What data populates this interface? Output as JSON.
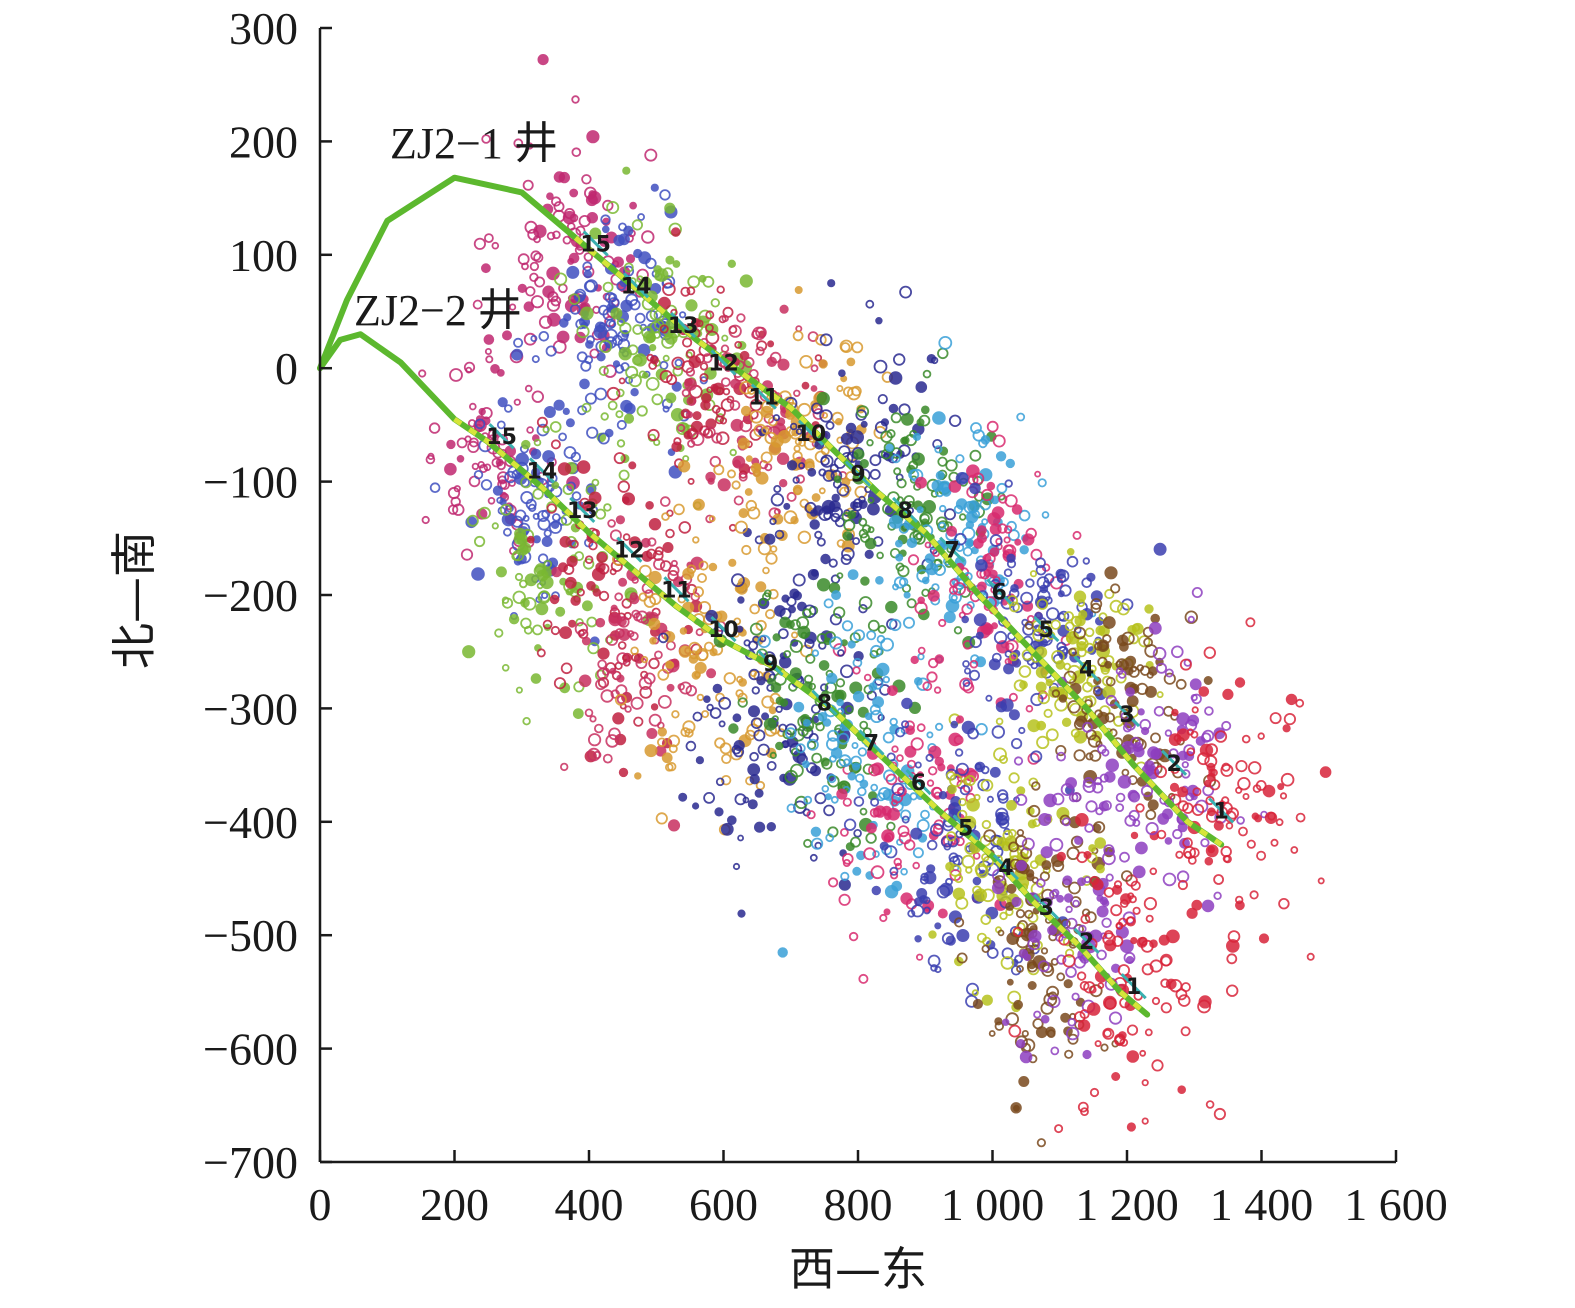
{
  "chart_data": {
    "type": "scatter",
    "title": "",
    "xlabel": "西—东",
    "ylabel": "北—南",
    "xlim": [
      0,
      1600
    ],
    "ylim": [
      -700,
      300
    ],
    "xticks": [
      0,
      200,
      400,
      600,
      800,
      1000,
      1200,
      1400,
      1600
    ],
    "xtick_labels": [
      "0",
      "200",
      "400",
      "600",
      "800",
      "1 000",
      "1 200",
      "1 400",
      "1 600"
    ],
    "yticks": [
      300,
      200,
      100,
      0,
      -100,
      -200,
      -300,
      -400,
      -500,
      -600,
      -700
    ],
    "ytick_labels": [
      "300",
      "200",
      "100",
      "0",
      "−100",
      "−200",
      "−300",
      "−400",
      "−500",
      "−600",
      "−700"
    ],
    "grid": false,
    "stage_colors": {
      "1": "#d8243a",
      "2": "#8e3fc0",
      "3": "#7a4a1e",
      "4": "#b7c21e",
      "5": "#3b3fb0",
      "6": "#d82a6e",
      "7": "#3aa0d8",
      "8": "#3a8a2a",
      "9": "#2a2a90",
      "10": "#d89a30",
      "11": "#c83060",
      "12": "#c02040",
      "13": "#7ab832",
      "14": "#4050c0",
      "15": "#c02870"
    },
    "wells": [
      {
        "name": "ZJ2−1 井",
        "color": "#5cb82e",
        "trajectory": [
          [
            0,
            0
          ],
          [
            40,
            60
          ],
          [
            100,
            130
          ],
          [
            200,
            168
          ],
          [
            300,
            155
          ],
          [
            380,
            115
          ],
          [
            470,
            70
          ],
          [
            560,
            25
          ],
          [
            640,
            -10
          ],
          [
            700,
            -35
          ],
          [
            760,
            -70
          ],
          [
            830,
            -110
          ],
          [
            900,
            -145
          ],
          [
            980,
            -200
          ],
          [
            1060,
            -250
          ],
          [
            1140,
            -300
          ],
          [
            1210,
            -350
          ],
          [
            1290,
            -400
          ],
          [
            1340,
            -420
          ]
        ],
        "stages": [
          {
            "label": "15",
            "x": 410,
            "y": 110
          },
          {
            "label": "14",
            "x": 470,
            "y": 73
          },
          {
            "label": "13",
            "x": 540,
            "y": 38
          },
          {
            "label": "12",
            "x": 600,
            "y": 5
          },
          {
            "label": "11",
            "x": 660,
            "y": -25
          },
          {
            "label": "10",
            "x": 730,
            "y": -57
          },
          {
            "label": "9",
            "x": 800,
            "y": -93
          },
          {
            "label": "8",
            "x": 870,
            "y": -125
          },
          {
            "label": "7",
            "x": 940,
            "y": -160
          },
          {
            "label": "6",
            "x": 1010,
            "y": -197
          },
          {
            "label": "5",
            "x": 1080,
            "y": -230
          },
          {
            "label": "4",
            "x": 1140,
            "y": -265
          },
          {
            "label": "3",
            "x": 1200,
            "y": -305
          },
          {
            "label": "2",
            "x": 1270,
            "y": -348
          },
          {
            "label": "1",
            "x": 1340,
            "y": -390
          }
        ]
      },
      {
        "name": "ZJ2−2 井",
        "color": "#5cb82e",
        "trajectory": [
          [
            0,
            0
          ],
          [
            30,
            25
          ],
          [
            60,
            30
          ],
          [
            120,
            5
          ],
          [
            200,
            -45
          ],
          [
            250,
            -65
          ],
          [
            330,
            -105
          ],
          [
            400,
            -145
          ],
          [
            460,
            -175
          ],
          [
            530,
            -210
          ],
          [
            600,
            -240
          ],
          [
            680,
            -265
          ],
          [
            760,
            -300
          ],
          [
            840,
            -345
          ],
          [
            920,
            -390
          ],
          [
            1000,
            -430
          ],
          [
            1060,
            -470
          ],
          [
            1130,
            -510
          ],
          [
            1190,
            -550
          ],
          [
            1230,
            -570
          ]
        ],
        "stages": [
          {
            "label": "15",
            "x": 270,
            "y": -60
          },
          {
            "label": "14",
            "x": 330,
            "y": -90
          },
          {
            "label": "13",
            "x": 390,
            "y": -125
          },
          {
            "label": "12",
            "x": 460,
            "y": -160
          },
          {
            "label": "11",
            "x": 530,
            "y": -195
          },
          {
            "label": "10",
            "x": 600,
            "y": -230
          },
          {
            "label": "9",
            "x": 670,
            "y": -260
          },
          {
            "label": "8",
            "x": 750,
            "y": -295
          },
          {
            "label": "7",
            "x": 820,
            "y": -330
          },
          {
            "label": "6",
            "x": 890,
            "y": -365
          },
          {
            "label": "5",
            "x": 960,
            "y": -405
          },
          {
            "label": "4",
            "x": 1020,
            "y": -440
          },
          {
            "label": "3",
            "x": 1080,
            "y": -475
          },
          {
            "label": "2",
            "x": 1140,
            "y": -505
          },
          {
            "label": "1",
            "x": 1210,
            "y": -545
          }
        ]
      }
    ],
    "event_clusters": [
      {
        "stage": "15",
        "cx": 380,
        "cy": 95,
        "sx": 55,
        "sy": 55,
        "n": 110
      },
      {
        "stage": "14",
        "cx": 450,
        "cy": 45,
        "sx": 55,
        "sy": 55,
        "n": 110
      },
      {
        "stage": "13",
        "cx": 520,
        "cy": 20,
        "sx": 60,
        "sy": 55,
        "n": 110
      },
      {
        "stage": "12",
        "cx": 590,
        "cy": -10,
        "sx": 50,
        "sy": 45,
        "n": 90
      },
      {
        "stage": "11",
        "cx": 650,
        "cy": -35,
        "sx": 55,
        "sy": 50,
        "n": 90
      },
      {
        "stage": "10",
        "cx": 720,
        "cy": -60,
        "sx": 55,
        "sy": 50,
        "n": 100
      },
      {
        "stage": "9",
        "cx": 790,
        "cy": -100,
        "sx": 60,
        "sy": 60,
        "n": 120
      },
      {
        "stage": "8",
        "cx": 870,
        "cy": -120,
        "sx": 55,
        "sy": 55,
        "n": 110
      },
      {
        "stage": "7",
        "cx": 950,
        "cy": -150,
        "sx": 60,
        "sy": 55,
        "n": 110
      },
      {
        "stage": "6",
        "cx": 1000,
        "cy": -200,
        "sx": 55,
        "sy": 55,
        "n": 100
      },
      {
        "stage": "5",
        "cx": 1060,
        "cy": -230,
        "sx": 60,
        "sy": 50,
        "n": 100
      },
      {
        "stage": "4",
        "cx": 1120,
        "cy": -260,
        "sx": 55,
        "sy": 50,
        "n": 100
      },
      {
        "stage": "3",
        "cx": 1190,
        "cy": -300,
        "sx": 50,
        "sy": 55,
        "n": 100
      },
      {
        "stage": "2",
        "cx": 1250,
        "cy": -340,
        "sx": 55,
        "sy": 55,
        "n": 90
      },
      {
        "stage": "1",
        "cx": 1350,
        "cy": -380,
        "sx": 65,
        "sy": 55,
        "n": 100
      },
      {
        "stage": "15",
        "cx": 250,
        "cy": -80,
        "sx": 40,
        "sy": 50,
        "n": 80
      },
      {
        "stage": "14",
        "cx": 320,
        "cy": -110,
        "sx": 45,
        "sy": 50,
        "n": 90
      },
      {
        "stage": "13",
        "cx": 350,
        "cy": -180,
        "sx": 55,
        "sy": 60,
        "n": 90
      },
      {
        "stage": "12",
        "cx": 440,
        "cy": -190,
        "sx": 60,
        "sy": 65,
        "n": 100
      },
      {
        "stage": "11",
        "cx": 470,
        "cy": -250,
        "sx": 55,
        "sy": 55,
        "n": 90
      },
      {
        "stage": "10",
        "cx": 580,
        "cy": -250,
        "sx": 65,
        "sy": 65,
        "n": 120
      },
      {
        "stage": "9",
        "cx": 680,
        "cy": -300,
        "sx": 65,
        "sy": 65,
        "n": 120
      },
      {
        "stage": "8",
        "cx": 750,
        "cy": -290,
        "sx": 55,
        "sy": 60,
        "n": 100
      },
      {
        "stage": "7",
        "cx": 810,
        "cy": -330,
        "sx": 60,
        "sy": 65,
        "n": 110
      },
      {
        "stage": "6",
        "cx": 880,
        "cy": -390,
        "sx": 55,
        "sy": 55,
        "n": 100
      },
      {
        "stage": "5",
        "cx": 950,
        "cy": -420,
        "sx": 60,
        "sy": 60,
        "n": 110
      },
      {
        "stage": "4",
        "cx": 1020,
        "cy": -440,
        "sx": 55,
        "sy": 55,
        "n": 100
      },
      {
        "stage": "3",
        "cx": 1070,
        "cy": -520,
        "sx": 50,
        "sy": 60,
        "n": 110
      },
      {
        "stage": "2",
        "cx": 1140,
        "cy": -480,
        "sx": 55,
        "sy": 65,
        "n": 100
      },
      {
        "stage": "1",
        "cx": 1210,
        "cy": -540,
        "sx": 60,
        "sy": 65,
        "n": 110
      }
    ]
  }
}
